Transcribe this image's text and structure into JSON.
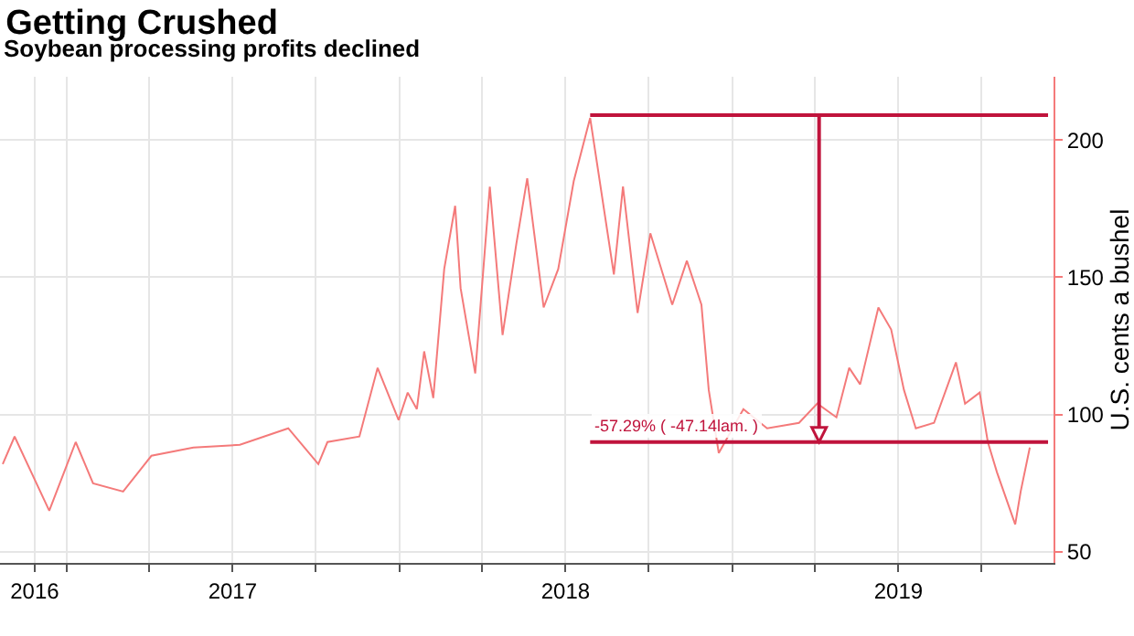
{
  "chart_data": {
    "type": "line",
    "title": "Getting Crushed",
    "subtitle": "Soybean processing profits declined",
    "ylabel": "U.S. cents a bushel",
    "x": [
      "2016-10-23",
      "2016-11-05",
      "2016-12-13",
      "2017-01-11",
      "2017-01-30",
      "2017-03-04",
      "2017-04-04",
      "2017-05-20",
      "2017-07-10",
      "2017-09-01",
      "2017-10-04",
      "2017-10-14",
      "2017-11-18",
      "2017-12-08",
      "2017-12-31",
      "2018-01-10",
      "2018-01-20",
      "2018-01-28",
      "2018-02-07",
      "2018-02-19",
      "2018-03-03",
      "2018-03-09",
      "2018-03-25",
      "2018-04-10",
      "2018-04-24",
      "2018-05-09",
      "2018-05-21",
      "2018-06-08",
      "2018-06-24",
      "2018-07-11",
      "2018-07-29",
      "2018-08-24",
      "2018-09-03",
      "2018-09-19",
      "2018-10-03",
      "2018-10-27",
      "2018-11-12",
      "2018-11-28",
      "2018-12-06",
      "2018-12-17",
      "2019-01-13",
      "2019-02-08",
      "2019-03-15",
      "2019-04-04",
      "2019-04-25",
      "2019-05-09",
      "2019-05-21",
      "2019-06-10",
      "2019-06-24",
      "2019-07-08",
      "2019-07-21",
      "2019-08-10",
      "2019-09-03",
      "2019-09-13",
      "2019-09-29",
      "2019-10-08",
      "2019-10-18",
      "2019-11-07",
      "2019-11-13",
      "2019-11-23"
    ],
    "series": [
      {
        "color": "#f47a7a",
        "values": [
          82,
          92,
          65,
          90,
          75,
          72,
          85,
          88,
          89,
          95,
          82,
          90,
          92,
          117,
          98,
          108,
          102,
          123,
          106,
          153,
          176,
          146,
          115,
          183,
          129,
          162,
          186,
          139,
          153,
          185,
          208,
          151,
          183,
          137,
          166,
          140,
          156,
          140,
          109,
          86,
          102,
          95,
          97,
          104,
          99,
          117,
          111,
          139,
          131,
          109,
          95,
          97,
          119,
          104,
          108,
          90,
          79,
          60,
          72,
          88
        ]
      },
      {
        "type": "line",
        "color": "#c0143c",
        "x": [
          "2018-07-29",
          "2019-12-13"
        ],
        "values": [
          209,
          209
        ]
      },
      {
        "type": "line",
        "color": "#c0143c",
        "x": [
          "2018-07-29",
          "2019-12-13"
        ],
        "values": [
          90,
          90
        ]
      }
    ],
    "annotations": [
      {
        "text": "-57.29% ( -47.14lam. )",
        "x": "2018-07-29",
        "y": 90
      }
    ],
    "xlim": [
      "2016-10-20",
      "2019-12-19"
    ],
    "xticks": [
      {
        "value": "2016-11-27",
        "label": "2016"
      },
      {
        "value": "2017-01-01",
        "label": null
      },
      {
        "value": "2017-04-01",
        "label": null
      },
      {
        "value": "2017-07-02",
        "label": "2017"
      },
      {
        "value": "2017-10-01",
        "label": null
      },
      {
        "value": "2018-01-01",
        "label": null
      },
      {
        "value": "2018-04-01",
        "label": null
      },
      {
        "value": "2018-07-02",
        "label": "2018"
      },
      {
        "value": "2018-10-01",
        "label": null
      },
      {
        "value": "2019-01-01",
        "label": null
      },
      {
        "value": "2019-04-01",
        "label": null
      },
      {
        "value": "2019-07-02",
        "label": "2019"
      },
      {
        "value": "2019-10-01",
        "label": null
      }
    ],
    "ylim": [
      46,
      223
    ],
    "yticks": [
      50,
      100,
      150,
      200
    ],
    "grid": true
  }
}
